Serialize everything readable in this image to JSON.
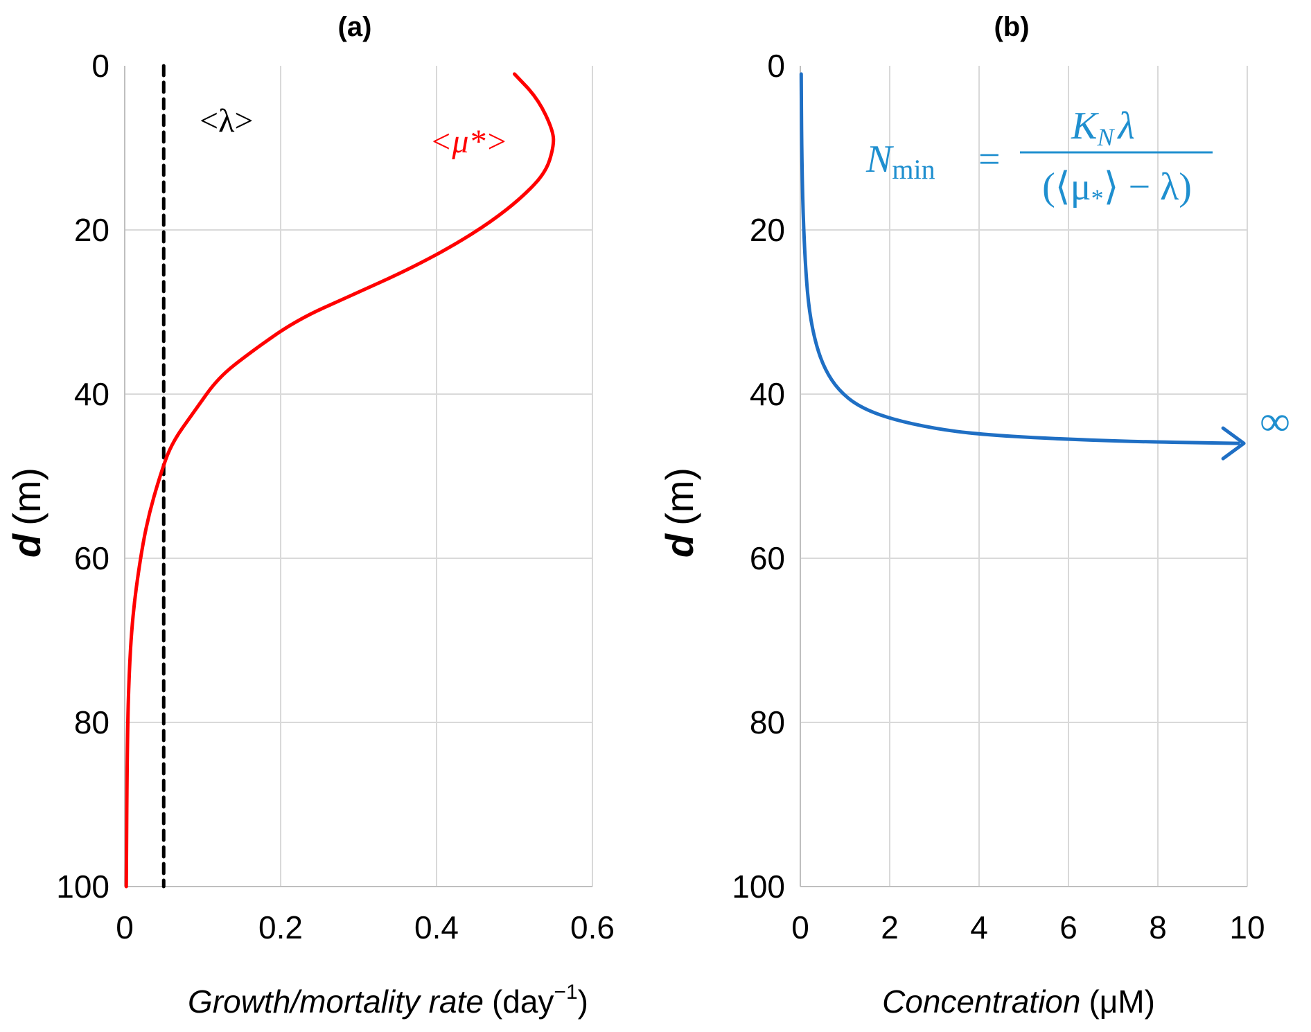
{
  "chart_data": [
    {
      "panel": "(a)",
      "type": "line",
      "title": "(a)",
      "xlabel_italic": "Growth/mortality rate",
      "xlabel_unit": "(day",
      "xlabel_unit_sup": "−1",
      "xlabel_unit_close": ")",
      "ylabel_italic": "d",
      "ylabel_unit": "(m)",
      "xlim": [
        0,
        0.6
      ],
      "ylim": [
        0,
        100
      ],
      "y_inverted": true,
      "xticks": [
        "0",
        "0.2",
        "0.4",
        "0.6"
      ],
      "yticks": [
        "0",
        "20",
        "40",
        "60",
        "80",
        "100"
      ],
      "grid": true,
      "series": [
        {
          "name": "<λ>",
          "color": "#000000",
          "style": "dashed",
          "points": [
            [
              0.05,
              0
            ],
            [
              0.05,
              100
            ]
          ]
        },
        {
          "name": "<μ*>",
          "color": "#ff0000",
          "style": "solid",
          "points": [
            [
              0.5,
              1
            ],
            [
              0.53,
              4
            ],
            [
              0.55,
              8
            ],
            [
              0.55,
              10
            ],
            [
              0.54,
              13
            ],
            [
              0.51,
              16
            ],
            [
              0.47,
              19
            ],
            [
              0.42,
              22
            ],
            [
              0.36,
              25
            ],
            [
              0.29,
              28
            ],
            [
              0.22,
              31
            ],
            [
              0.16,
              35
            ],
            [
              0.12,
              38
            ],
            [
              0.09,
              42
            ],
            [
              0.06,
              46
            ],
            [
              0.045,
              50
            ],
            [
              0.03,
              55
            ],
            [
              0.02,
              60
            ],
            [
              0.01,
              67
            ],
            [
              0.005,
              75
            ],
            [
              0.003,
              85
            ],
            [
              0.002,
              100
            ]
          ]
        }
      ]
    },
    {
      "panel": "(b)",
      "type": "line",
      "title": "(b)",
      "xlabel_italic": "Concentration",
      "xlabel_unit": "(μM)",
      "ylabel_italic": "d",
      "ylabel_unit": "(m)",
      "xlim": [
        0,
        10
      ],
      "ylim": [
        0,
        100
      ],
      "y_inverted": true,
      "xticks": [
        "0",
        "2",
        "4",
        "6",
        "8",
        "10"
      ],
      "yticks": [
        "0",
        "20",
        "40",
        "60",
        "80",
        "100"
      ],
      "grid": true,
      "annotation": {
        "lhs": "N",
        "lhs_sub": "min",
        "numerator": "K",
        "numerator_sub": "N",
        "numerator_tail": "λ",
        "denominator": "(⟨μ",
        "denominator_sub": "*",
        "denominator_tail": "⟩ − λ)",
        "infinity": "∞"
      },
      "series": [
        {
          "name": "N_min",
          "color": "#1f6fc4",
          "style": "solid",
          "points": [
            [
              0.02,
              1
            ],
            [
              0.03,
              10
            ],
            [
              0.06,
              18
            ],
            [
              0.12,
              25
            ],
            [
              0.2,
              30
            ],
            [
              0.35,
              34
            ],
            [
              0.55,
              37
            ],
            [
              0.85,
              39.5
            ],
            [
              1.3,
              41.5
            ],
            [
              2.0,
              43
            ],
            [
              3.0,
              44.2
            ],
            [
              4.0,
              44.9
            ],
            [
              5.5,
              45.4
            ],
            [
              7.5,
              45.8
            ],
            [
              9.8,
              46
            ]
          ]
        }
      ]
    }
  ]
}
